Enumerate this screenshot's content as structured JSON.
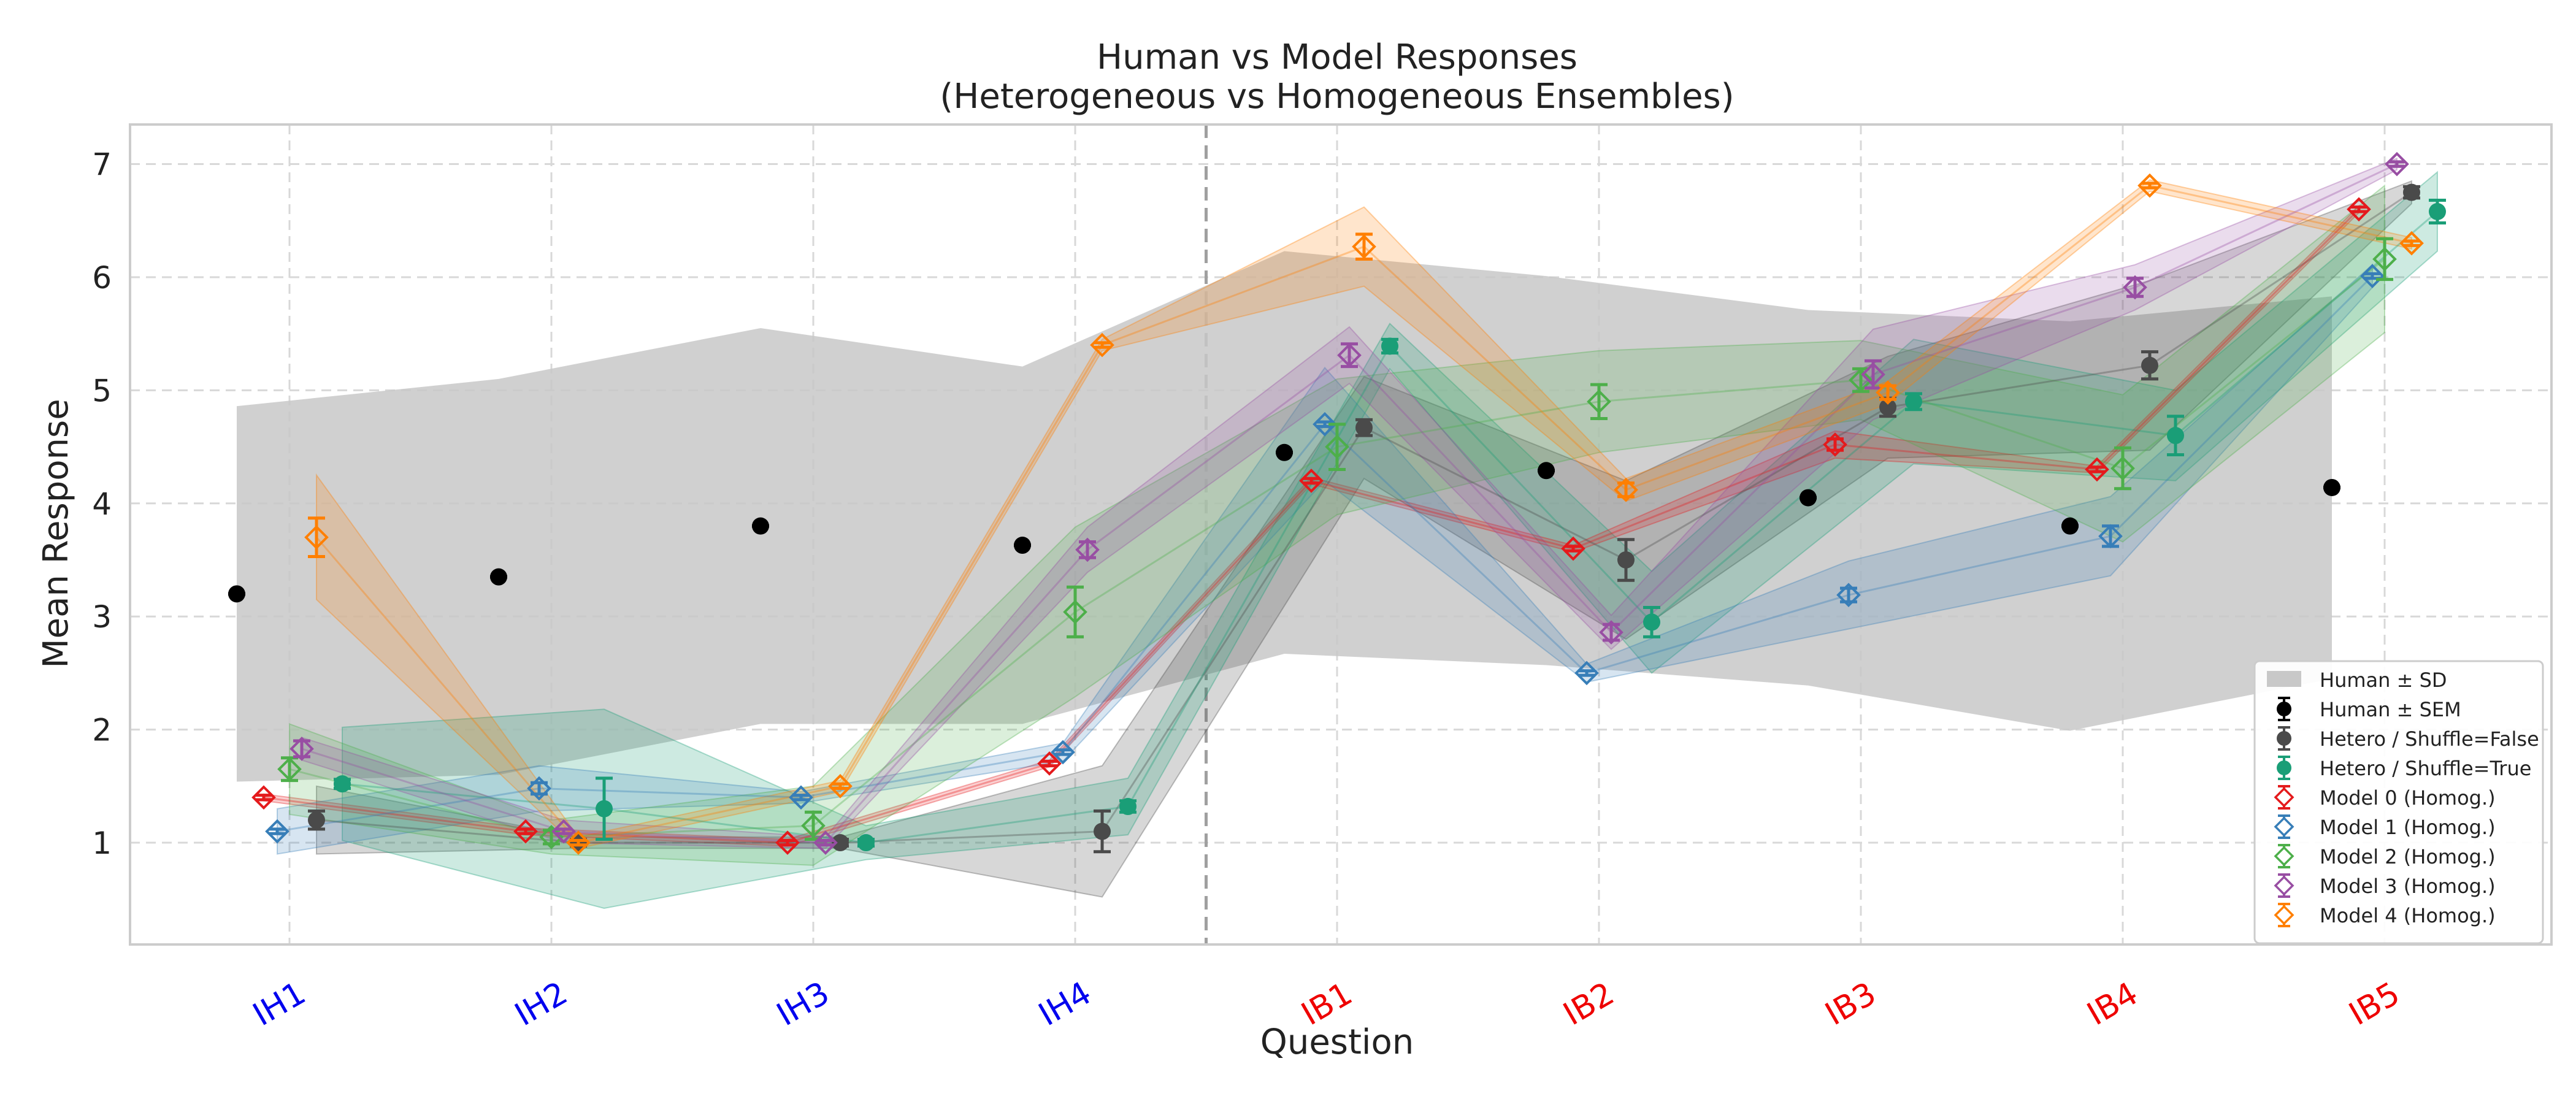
{
  "chart_data": {
    "type": "scatter",
    "title": "Human vs Model Responses",
    "subtitle": "(Heterogeneous vs Homogeneous Ensembles)",
    "xlabel": "Question",
    "ylabel": "Mean Response",
    "categories": [
      "IH1",
      "IH2",
      "IH3",
      "IH4",
      "IB1",
      "IB2",
      "IB3",
      "IB4",
      "IB5"
    ],
    "category_colors": [
      "#0000ee",
      "#0000ee",
      "#0000ee",
      "#0000ee",
      "#ee0000",
      "#ee0000",
      "#ee0000",
      "#ee0000",
      "#ee0000"
    ],
    "ylim": [
      0.1,
      7.35
    ],
    "yticks": [
      1,
      2,
      3,
      4,
      5,
      6,
      7
    ],
    "grid": true,
    "divider_after_category": "IH4",
    "legend_position": "lower-right",
    "human": {
      "sd_label": "Human ± SD",
      "sem_label": "Human ± SEM",
      "color": "#000000",
      "band_color": "#c8c8c8",
      "mean": [
        3.2,
        3.35,
        3.8,
        3.63,
        4.45,
        4.29,
        4.05,
        3.8,
        4.14
      ],
      "sd": [
        1.66,
        1.75,
        1.75,
        1.58,
        1.78,
        1.72,
        1.66,
        1.81,
        1.69
      ],
      "sem": [
        0.02,
        0.02,
        0.02,
        0.02,
        0.02,
        0.02,
        0.02,
        0.02,
        0.02
      ]
    },
    "series": [
      {
        "name": "Hetero / Shuffle=False",
        "kind": "hetero",
        "color": "#4a4a4a",
        "mean": [
          1.2,
          1.0,
          1.0,
          1.1,
          4.67,
          3.5,
          4.85,
          5.22,
          6.75
        ],
        "err": [
          0.08,
          0.03,
          0.03,
          0.18,
          0.07,
          0.18,
          0.08,
          0.12,
          0.05
        ],
        "sd": [
          0.3,
          0.05,
          0.05,
          0.58,
          0.45,
          0.7,
          0.45,
          0.75,
          0.1
        ]
      },
      {
        "name": "Hetero / Shuffle=True",
        "kind": "hetero",
        "color": "#1a9e77",
        "mean": [
          1.52,
          1.3,
          1.0,
          1.32,
          5.39,
          2.95,
          4.9,
          4.6,
          6.58
        ],
        "err": [
          0.04,
          0.27,
          0.03,
          0.05,
          0.06,
          0.13,
          0.07,
          0.17,
          0.1
        ],
        "sd": [
          0.5,
          0.88,
          0.15,
          0.25,
          0.2,
          0.45,
          0.55,
          0.4,
          0.35
        ]
      },
      {
        "name": "Model 0 (Homog.)",
        "kind": "homog",
        "color": "#e41a1c",
        "mean": [
          1.4,
          1.1,
          1.0,
          1.7,
          4.2,
          3.6,
          4.52,
          4.3,
          6.6
        ],
        "err": [
          0.02,
          0.02,
          0.02,
          0.02,
          0.02,
          0.02,
          0.05,
          0.02,
          0.02
        ],
        "sd": [
          0.03,
          0.03,
          0.03,
          0.03,
          0.03,
          0.03,
          0.12,
          0.03,
          0.03
        ]
      },
      {
        "name": "Model 1 (Homog.)",
        "kind": "homog",
        "color": "#377eb8",
        "mean": [
          1.1,
          1.48,
          1.4,
          1.8,
          4.7,
          2.5,
          3.19,
          3.71,
          6.01
        ],
        "err": [
          0.02,
          0.05,
          0.02,
          0.02,
          0.02,
          0.02,
          0.06,
          0.09,
          0.02
        ],
        "sd": [
          0.2,
          0.2,
          0.05,
          0.08,
          0.5,
          0.08,
          0.3,
          0.35,
          0.1
        ]
      },
      {
        "name": "Model 2 (Homog.)",
        "kind": "homog",
        "color": "#4daf4a",
        "mean": [
          1.65,
          1.05,
          1.15,
          3.04,
          4.5,
          4.9,
          5.09,
          4.31,
          6.16
        ],
        "err": [
          0.1,
          0.06,
          0.12,
          0.22,
          0.2,
          0.15,
          0.1,
          0.18,
          0.18
        ],
        "sd": [
          0.4,
          0.15,
          0.35,
          0.75,
          0.6,
          0.45,
          0.35,
          0.65,
          0.65
        ]
      },
      {
        "name": "Model 3 (Homog.)",
        "kind": "homog",
        "color": "#984ea3",
        "mean": [
          1.83,
          1.1,
          1.0,
          3.59,
          5.31,
          2.86,
          5.14,
          5.91,
          7.0
        ],
        "err": [
          0.07,
          0.02,
          0.02,
          0.07,
          0.1,
          0.07,
          0.12,
          0.08,
          0.02
        ],
        "sd": [
          0.1,
          0.1,
          0.05,
          0.2,
          0.25,
          0.15,
          0.4,
          0.2,
          0.05
        ]
      },
      {
        "name": "Model 4 (Homog.)",
        "kind": "homog",
        "color": "#ff7f00",
        "mean": [
          3.7,
          1.0,
          1.5,
          5.4,
          6.27,
          4.12,
          4.98,
          6.81,
          6.3
        ],
        "err": [
          0.17,
          0.02,
          0.02,
          0.02,
          0.11,
          0.06,
          0.06,
          0.02,
          0.02
        ],
        "sd": [
          0.55,
          0.05,
          0.05,
          0.05,
          0.35,
          0.1,
          0.1,
          0.05,
          0.05
        ]
      }
    ]
  }
}
